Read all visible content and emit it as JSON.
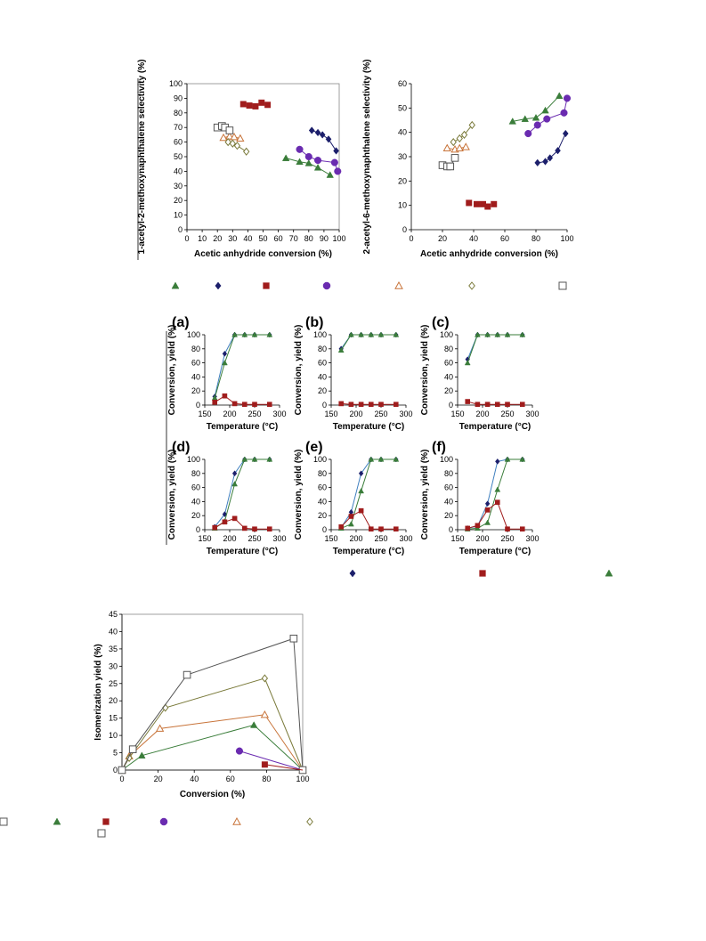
{
  "colors": {
    "green": "#3a7d3a",
    "navy": "#1c1f6b",
    "red": "#a01c1c",
    "purple": "#6a2bb0",
    "orange": "#c8743a",
    "olive": "#7a7a3a",
    "gray": "#555555",
    "blue_line": "#3f7fbf"
  },
  "legend_row1_markers": [
    "triangle-green",
    "diamond-navy",
    "square-red",
    "circle-purple",
    "open-triangle-orange",
    "open-diamond-olive",
    "open-square-gray"
  ],
  "legend_row2_markers": [
    "diamond-navy",
    "square-red",
    "triangle-green"
  ],
  "legend_row3_markers": [
    "triangle-green",
    "square-red",
    "circle-purple",
    "open-triangle-orange",
    "open-diamond-olive",
    "open-square-gray"
  ],
  "chart_data": [
    {
      "id": "sel1",
      "type": "scatter",
      "xlabel": "Acetic anhydride conversion (%)",
      "ylabel": "1-acetyl-2-methoxynaphthalene selectivity (%)",
      "xlim": [
        0,
        100
      ],
      "ylim": [
        0,
        100
      ],
      "xticks": [
        0,
        10,
        20,
        30,
        40,
        50,
        60,
        70,
        80,
        90,
        100
      ],
      "yticks": [
        0,
        10,
        20,
        30,
        40,
        50,
        60,
        70,
        80,
        90,
        100
      ],
      "series": [
        {
          "marker": "triangle",
          "color": "green",
          "line": true,
          "points": [
            [
              65,
              49
            ],
            [
              74,
              46.5
            ],
            [
              80,
              45.5
            ],
            [
              86,
              42.5
            ],
            [
              94,
              37.5
            ]
          ]
        },
        {
          "marker": "diamond",
          "color": "navy",
          "line": true,
          "points": [
            [
              82,
              68
            ],
            [
              86,
              66.5
            ],
            [
              89,
              65
            ],
            [
              93,
              62
            ],
            [
              98,
              54
            ]
          ]
        },
        {
          "marker": "square",
          "color": "red",
          "line": false,
          "points": [
            [
              37,
              86
            ],
            [
              41,
              85
            ],
            [
              45,
              84.5
            ],
            [
              49,
              87
            ],
            [
              53,
              85.5
            ]
          ]
        },
        {
          "marker": "circle",
          "color": "purple",
          "line": true,
          "points": [
            [
              74,
              55
            ],
            [
              80,
              50
            ],
            [
              86,
              47.5
            ],
            [
              97,
              46
            ],
            [
              99,
              40
            ]
          ]
        },
        {
          "marker": "open-triangle",
          "color": "orange",
          "line": true,
          "points": [
            [
              24,
              63
            ],
            [
              28,
              64
            ],
            [
              31,
              63.5
            ],
            [
              35,
              62.5
            ]
          ]
        },
        {
          "marker": "open-diamond",
          "color": "olive",
          "line": true,
          "points": [
            [
              27,
              60
            ],
            [
              30,
              59
            ],
            [
              33,
              57.5
            ],
            [
              39,
              53.5
            ]
          ]
        },
        {
          "marker": "open-square",
          "color": "gray",
          "line": true,
          "points": [
            [
              20,
              70
            ],
            [
              23,
              71
            ],
            [
              25,
              70
            ],
            [
              28,
              68
            ]
          ]
        }
      ]
    },
    {
      "id": "sel6",
      "type": "scatter",
      "xlabel": "Acetic anhydride conversion (%)",
      "ylabel": "2-acetyl-6-methoxynaphthalene selectivity (%)",
      "xlim": [
        0,
        100
      ],
      "ylim": [
        0,
        60
      ],
      "xticks": [
        0,
        20,
        40,
        60,
        80,
        100
      ],
      "yticks": [
        0,
        10,
        20,
        30,
        40,
        50,
        60
      ],
      "series": [
        {
          "marker": "triangle",
          "color": "green",
          "line": true,
          "points": [
            [
              65,
              44.5
            ],
            [
              73,
              45.5
            ],
            [
              80,
              46
            ],
            [
              86,
              49
            ],
            [
              95,
              55
            ]
          ]
        },
        {
          "marker": "diamond",
          "color": "navy",
          "line": true,
          "points": [
            [
              81,
              27.5
            ],
            [
              86,
              28
            ],
            [
              89,
              29.5
            ],
            [
              94,
              32.5
            ],
            [
              99,
              39.5
            ]
          ]
        },
        {
          "marker": "square",
          "color": "red",
          "line": false,
          "points": [
            [
              37,
              11
            ],
            [
              42,
              10.5
            ],
            [
              46,
              10.5
            ],
            [
              49,
              9.5
            ],
            [
              53,
              10.5
            ]
          ]
        },
        {
          "marker": "circle",
          "color": "purple",
          "line": true,
          "points": [
            [
              75,
              39.5
            ],
            [
              81,
              43
            ],
            [
              87,
              45.5
            ],
            [
              98,
              48
            ],
            [
              100,
              54
            ]
          ]
        },
        {
          "marker": "open-triangle",
          "color": "orange",
          "line": true,
          "points": [
            [
              23,
              33.5
            ],
            [
              28,
              33
            ],
            [
              31,
              33.5
            ],
            [
              35,
              34
            ]
          ]
        },
        {
          "marker": "open-diamond",
          "color": "olive",
          "line": true,
          "points": [
            [
              27,
              36
            ],
            [
              31,
              37.5
            ],
            [
              34,
              39
            ],
            [
              39,
              43
            ]
          ]
        },
        {
          "marker": "open-square",
          "color": "gray",
          "line": true,
          "points": [
            [
              20,
              26.5
            ],
            [
              23,
              26
            ],
            [
              25,
              26
            ],
            [
              28,
              29.5
            ]
          ]
        }
      ]
    },
    {
      "id": "a",
      "panel": "(a)",
      "type": "line",
      "xlabel": "Temperature (°C)",
      "ylabel": "Conversion, yield (%)",
      "xlim": [
        150,
        300
      ],
      "ylim": [
        0,
        100
      ],
      "xticks": [
        150,
        200,
        250,
        300
      ],
      "yticks": [
        0,
        20,
        40,
        60,
        80,
        100
      ],
      "x": [
        170,
        190,
        210,
        230,
        250,
        280
      ],
      "series": [
        {
          "marker": "diamond",
          "color": "navy",
          "values": [
            12,
            73,
            100,
            100,
            100,
            100
          ]
        },
        {
          "marker": "triangle",
          "color": "green",
          "values": [
            10,
            60,
            100,
            100,
            100,
            100
          ]
        },
        {
          "marker": "square",
          "color": "red",
          "values": [
            4,
            13,
            2,
            1,
            1,
            1
          ]
        }
      ]
    },
    {
      "id": "b",
      "panel": "(b)",
      "type": "line",
      "xlabel": "Temperature (°C)",
      "ylabel": "Conversion, yield (%)",
      "xlim": [
        150,
        300
      ],
      "ylim": [
        0,
        100
      ],
      "xticks": [
        150,
        200,
        250,
        300
      ],
      "yticks": [
        0,
        20,
        40,
        60,
        80,
        100
      ],
      "x": [
        170,
        190,
        210,
        230,
        250,
        280
      ],
      "series": [
        {
          "marker": "diamond",
          "color": "navy",
          "values": [
            80,
            100,
            100,
            100,
            100,
            100
          ]
        },
        {
          "marker": "triangle",
          "color": "green",
          "values": [
            78,
            100,
            100,
            100,
            100,
            100
          ]
        },
        {
          "marker": "square",
          "color": "red",
          "values": [
            2,
            1,
            1,
            1,
            1,
            1
          ]
        }
      ]
    },
    {
      "id": "c",
      "panel": "(c)",
      "type": "line",
      "xlabel": "Temperature (°C)",
      "ylabel": "Conversion, yield (%)",
      "xlim": [
        150,
        300
      ],
      "ylim": [
        0,
        100
      ],
      "xticks": [
        150,
        200,
        250,
        300
      ],
      "yticks": [
        0,
        20,
        40,
        60,
        80,
        100
      ],
      "x": [
        170,
        190,
        210,
        230,
        250,
        280
      ],
      "series": [
        {
          "marker": "diamond",
          "color": "navy",
          "values": [
            65,
            100,
            100,
            100,
            100,
            100
          ]
        },
        {
          "marker": "triangle",
          "color": "green",
          "values": [
            60,
            100,
            100,
            100,
            100,
            100
          ]
        },
        {
          "marker": "square",
          "color": "red",
          "values": [
            5,
            1,
            1,
            1,
            1,
            1
          ]
        }
      ]
    },
    {
      "id": "d",
      "panel": "(d)",
      "type": "line",
      "xlabel": "Temperature (°C)",
      "ylabel": "Conversion, yield (%)",
      "xlim": [
        150,
        300
      ],
      "ylim": [
        0,
        100
      ],
      "xticks": [
        150,
        200,
        250,
        300
      ],
      "yticks": [
        0,
        20,
        40,
        60,
        80,
        100
      ],
      "x": [
        170,
        190,
        210,
        230,
        250,
        280
      ],
      "series": [
        {
          "marker": "diamond",
          "color": "navy",
          "values": [
            4,
            22,
            80,
            100,
            100,
            100
          ]
        },
        {
          "marker": "triangle",
          "color": "green",
          "values": [
            2,
            12,
            65,
            100,
            100,
            100
          ]
        },
        {
          "marker": "square",
          "color": "red",
          "values": [
            3,
            11,
            16,
            2,
            1,
            1
          ]
        }
      ]
    },
    {
      "id": "e",
      "panel": "(e)",
      "type": "line",
      "xlabel": "Temperature (°C)",
      "ylabel": "Conversion, yield (%)",
      "xlim": [
        150,
        300
      ],
      "ylim": [
        0,
        100
      ],
      "xticks": [
        150,
        200,
        250,
        300
      ],
      "yticks": [
        0,
        20,
        40,
        60,
        80,
        100
      ],
      "x": [
        170,
        190,
        210,
        230,
        250,
        280
      ],
      "series": [
        {
          "marker": "diamond",
          "color": "navy",
          "values": [
            3,
            25,
            80,
            100,
            100,
            100
          ]
        },
        {
          "marker": "triangle",
          "color": "green",
          "values": [
            2,
            8,
            55,
            100,
            100,
            100
          ]
        },
        {
          "marker": "square",
          "color": "red",
          "values": [
            4,
            19,
            27,
            1,
            1,
            1
          ]
        }
      ]
    },
    {
      "id": "f",
      "panel": "(f)",
      "type": "line",
      "xlabel": "Temperature (°C)",
      "ylabel": "Conversion, yield (%)",
      "xlim": [
        150,
        300
      ],
      "ylim": [
        0,
        100
      ],
      "xticks": [
        150,
        200,
        250,
        300
      ],
      "yticks": [
        0,
        20,
        40,
        60,
        80,
        100
      ],
      "x": [
        170,
        190,
        210,
        230,
        250,
        280
      ],
      "series": [
        {
          "marker": "diamond",
          "color": "navy",
          "values": [
            2,
            5,
            37,
            97,
            100,
            100
          ]
        },
        {
          "marker": "triangle",
          "color": "green",
          "values": [
            1,
            2,
            10,
            57,
            100,
            100
          ]
        },
        {
          "marker": "square",
          "color": "red",
          "values": [
            2,
            6,
            28,
            39,
            1,
            1
          ]
        }
      ]
    },
    {
      "id": "iso",
      "type": "line",
      "xlabel": "Conversion (%)",
      "ylabel": "Isomerization yield (%)",
      "xlim": [
        0,
        100
      ],
      "ylim": [
        0,
        45
      ],
      "xticks": [
        0,
        20,
        40,
        60,
        80,
        100
      ],
      "yticks": [
        0,
        5,
        10,
        15,
        20,
        25,
        30,
        35,
        40,
        45
      ],
      "series": [
        {
          "marker": "triangle",
          "color": "green",
          "line": true,
          "points": [
            [
              0,
              0
            ],
            [
              11,
              4.2
            ],
            [
              73,
              13
            ],
            [
              100,
              0
            ]
          ]
        },
        {
          "marker": "square",
          "color": "red",
          "line": false,
          "points": [
            [
              79,
              1.6
            ],
            [
              100,
              0
            ]
          ]
        },
        {
          "marker": "circle",
          "color": "purple",
          "line": true,
          "points": [
            [
              65,
              5.5
            ],
            [
              100,
              0
            ]
          ]
        },
        {
          "marker": "open-triangle",
          "color": "orange",
          "line": true,
          "points": [
            [
              0,
              0
            ],
            [
              4,
              4
            ],
            [
              21,
              12
            ],
            [
              79,
              16
            ],
            [
              100,
              0
            ]
          ]
        },
        {
          "marker": "open-diamond",
          "color": "olive",
          "line": true,
          "points": [
            [
              0,
              0
            ],
            [
              4,
              3.5
            ],
            [
              24,
              18
            ],
            [
              79,
              26.5
            ],
            [
              100,
              0
            ]
          ]
        },
        {
          "marker": "open-square",
          "color": "gray",
          "line": true,
          "points": [
            [
              0,
              0
            ],
            [
              6,
              6
            ],
            [
              36,
              27.5
            ],
            [
              95,
              38
            ],
            [
              100,
              0
            ]
          ]
        }
      ]
    }
  ]
}
